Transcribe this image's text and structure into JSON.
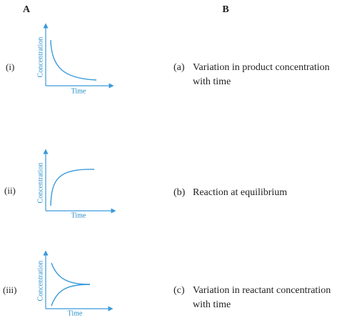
{
  "columns": {
    "a": "A",
    "b": "B"
  },
  "column_a": [
    {
      "label": "(i)",
      "y_axis": "Concentration",
      "x_axis": "Time"
    },
    {
      "label": "(ii)",
      "y_axis": "Concentration",
      "x_axis": "Time"
    },
    {
      "label": "(iii)",
      "y_axis": "Concentration",
      "x_axis": "Time"
    }
  ],
  "column_b": [
    {
      "label": "(a)",
      "lines": [
        "Variation in product concentration",
        "with time"
      ]
    },
    {
      "label": "(b)",
      "lines": [
        "Reaction at equilibrium"
      ]
    },
    {
      "label": "(c)",
      "lines": [
        "Variation in reactant concentration",
        "with time"
      ]
    }
  ]
}
